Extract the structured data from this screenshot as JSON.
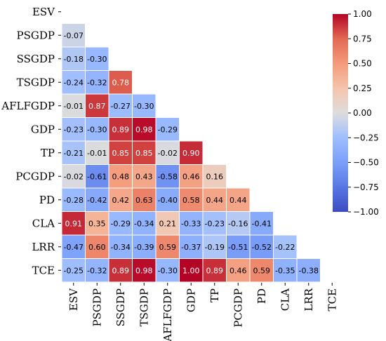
{
  "chart_data": {
    "type": "heatmap",
    "title": "",
    "variables": [
      "ESV",
      "PSGDP",
      "SSGDP",
      "TSGDP",
      "AFLFGDP",
      "GDP",
      "TP",
      "PCGDP",
      "PD",
      "CLA",
      "LRR",
      "TCE"
    ],
    "lower_triangle_values": [
      [],
      [
        -0.07
      ],
      [
        -0.18,
        -0.3
      ],
      [
        -0.24,
        -0.32,
        0.78
      ],
      [
        -0.01,
        0.87,
        -0.27,
        -0.3
      ],
      [
        -0.23,
        -0.3,
        0.89,
        0.98,
        -0.29
      ],
      [
        -0.21,
        -0.01,
        0.85,
        0.85,
        -0.02,
        0.9
      ],
      [
        -0.02,
        -0.61,
        0.48,
        0.43,
        -0.58,
        0.46,
        0.16
      ],
      [
        -0.28,
        -0.42,
        0.42,
        0.63,
        -0.4,
        0.58,
        0.44,
        0.44
      ],
      [
        0.91,
        0.35,
        -0.29,
        -0.34,
        0.21,
        -0.33,
        -0.23,
        -0.16,
        -0.41
      ],
      [
        -0.47,
        0.6,
        -0.34,
        -0.39,
        0.59,
        -0.37,
        -0.19,
        -0.51,
        -0.52,
        -0.22
      ],
      [
        -0.25,
        -0.32,
        0.89,
        0.98,
        -0.3,
        1.0,
        0.89,
        0.46,
        0.59,
        -0.35,
        -0.38
      ]
    ],
    "colorbar": {
      "colormap": "coolwarm",
      "range": [
        -1.0,
        1.0
      ],
      "ticks": [
        "1.00",
        "0.75",
        "0.50",
        "0.25",
        "0.00",
        "−0.25",
        "−0.50",
        "−0.75",
        "−1.00"
      ],
      "tick_values": [
        1.0,
        0.75,
        0.5,
        0.25,
        0.0,
        -0.25,
        -0.5,
        -0.75,
        -1.0
      ]
    },
    "mask": "upper-triangle-and-diagonal"
  }
}
